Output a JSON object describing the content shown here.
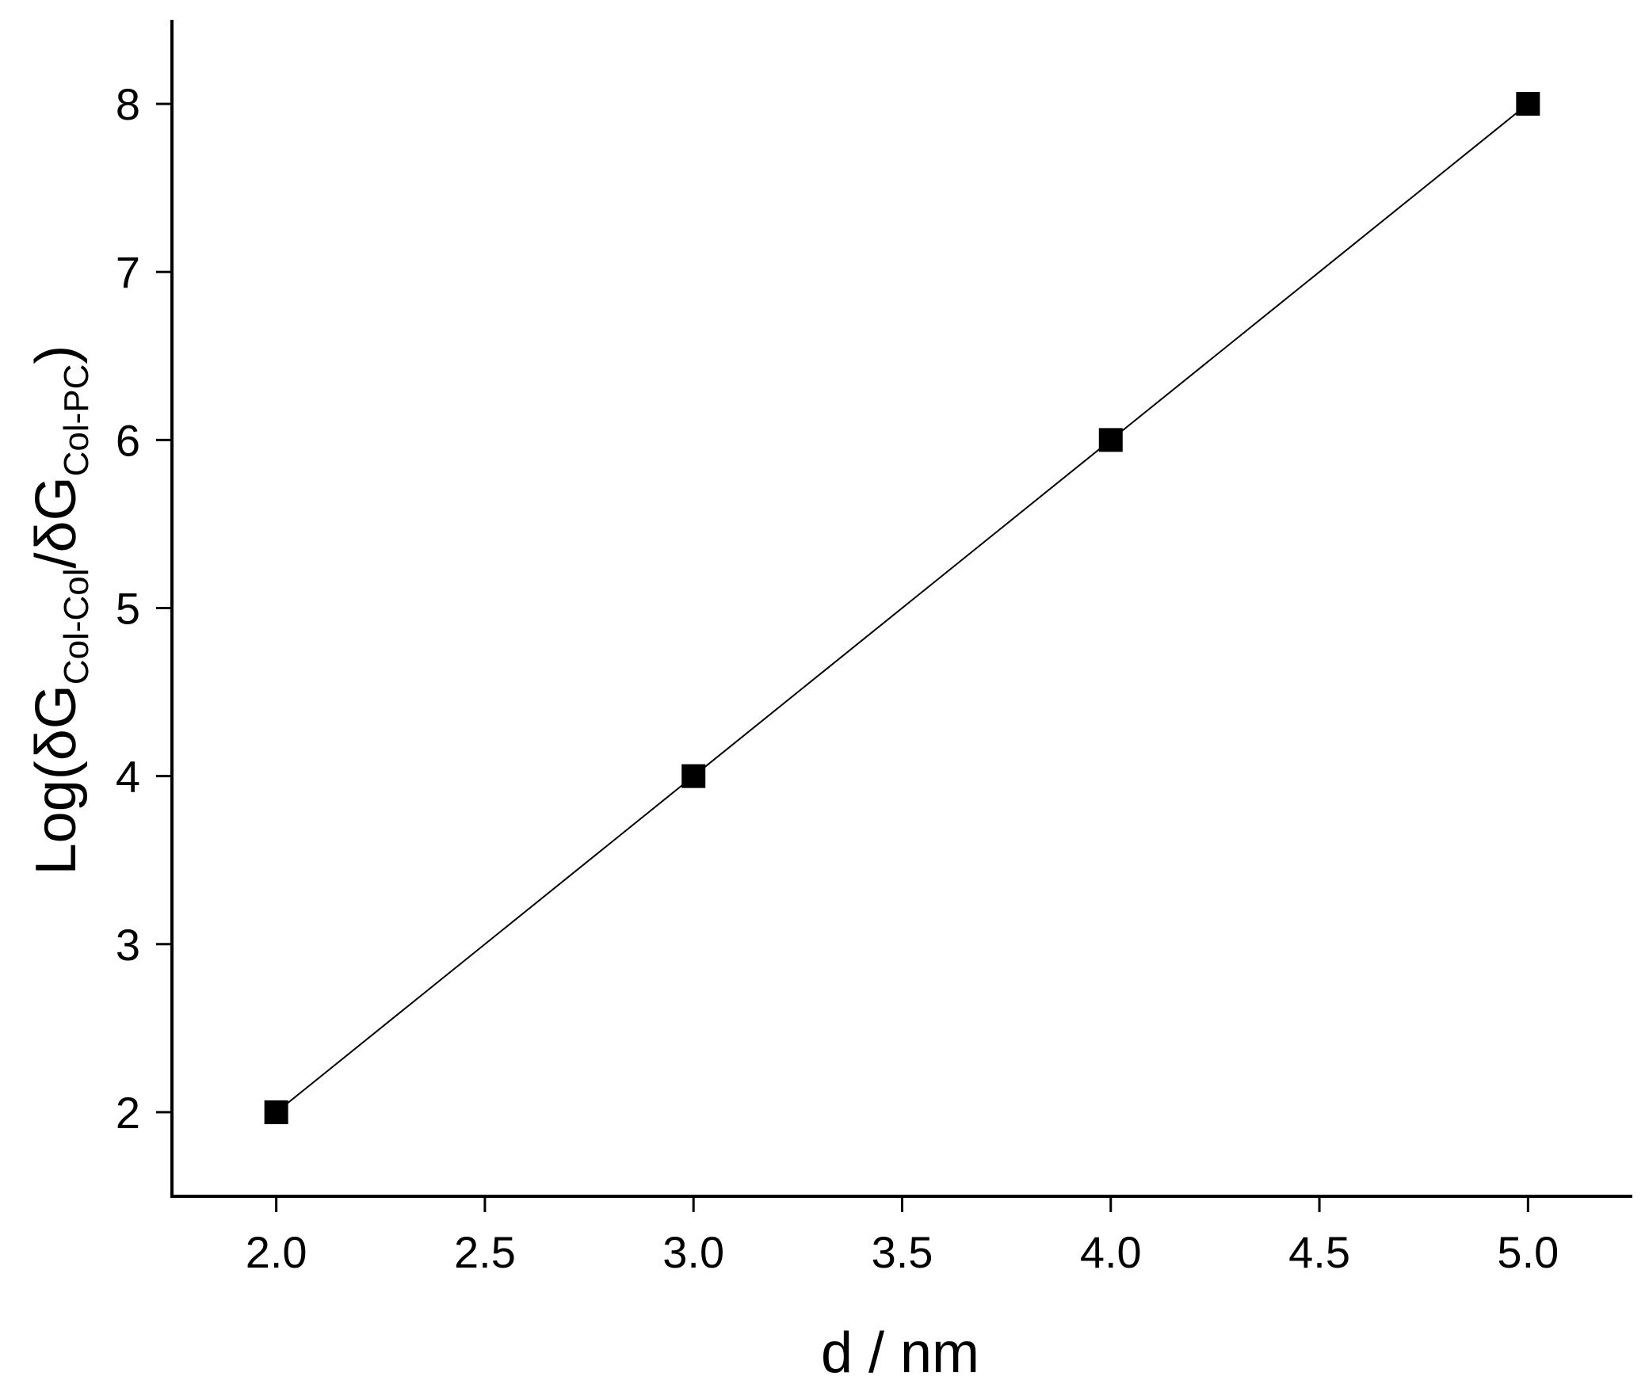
{
  "chart_data": {
    "type": "line",
    "x": [
      2.0,
      3.0,
      4.0,
      5.0
    ],
    "series": [
      {
        "values": [
          2,
          4,
          6,
          8
        ],
        "marker": "square",
        "color": "#000000"
      }
    ],
    "xlim": [
      1.75,
      5.25
    ],
    "ylim": [
      1.5,
      8.5
    ],
    "xticks": [
      "2.0",
      "2.5",
      "3.0",
      "3.5",
      "4.0",
      "4.5",
      "5.0"
    ],
    "yticks": [
      "2",
      "3",
      "4",
      "5",
      "6",
      "7",
      "8"
    ],
    "xlabel": "d / nm",
    "ylabel": {
      "prefix": "Log(δG",
      "sub1": "Col-Col",
      "mid": "/δG",
      "sub2": "Col-PC",
      "suffix": ")"
    },
    "grid": false,
    "legend": "none"
  }
}
